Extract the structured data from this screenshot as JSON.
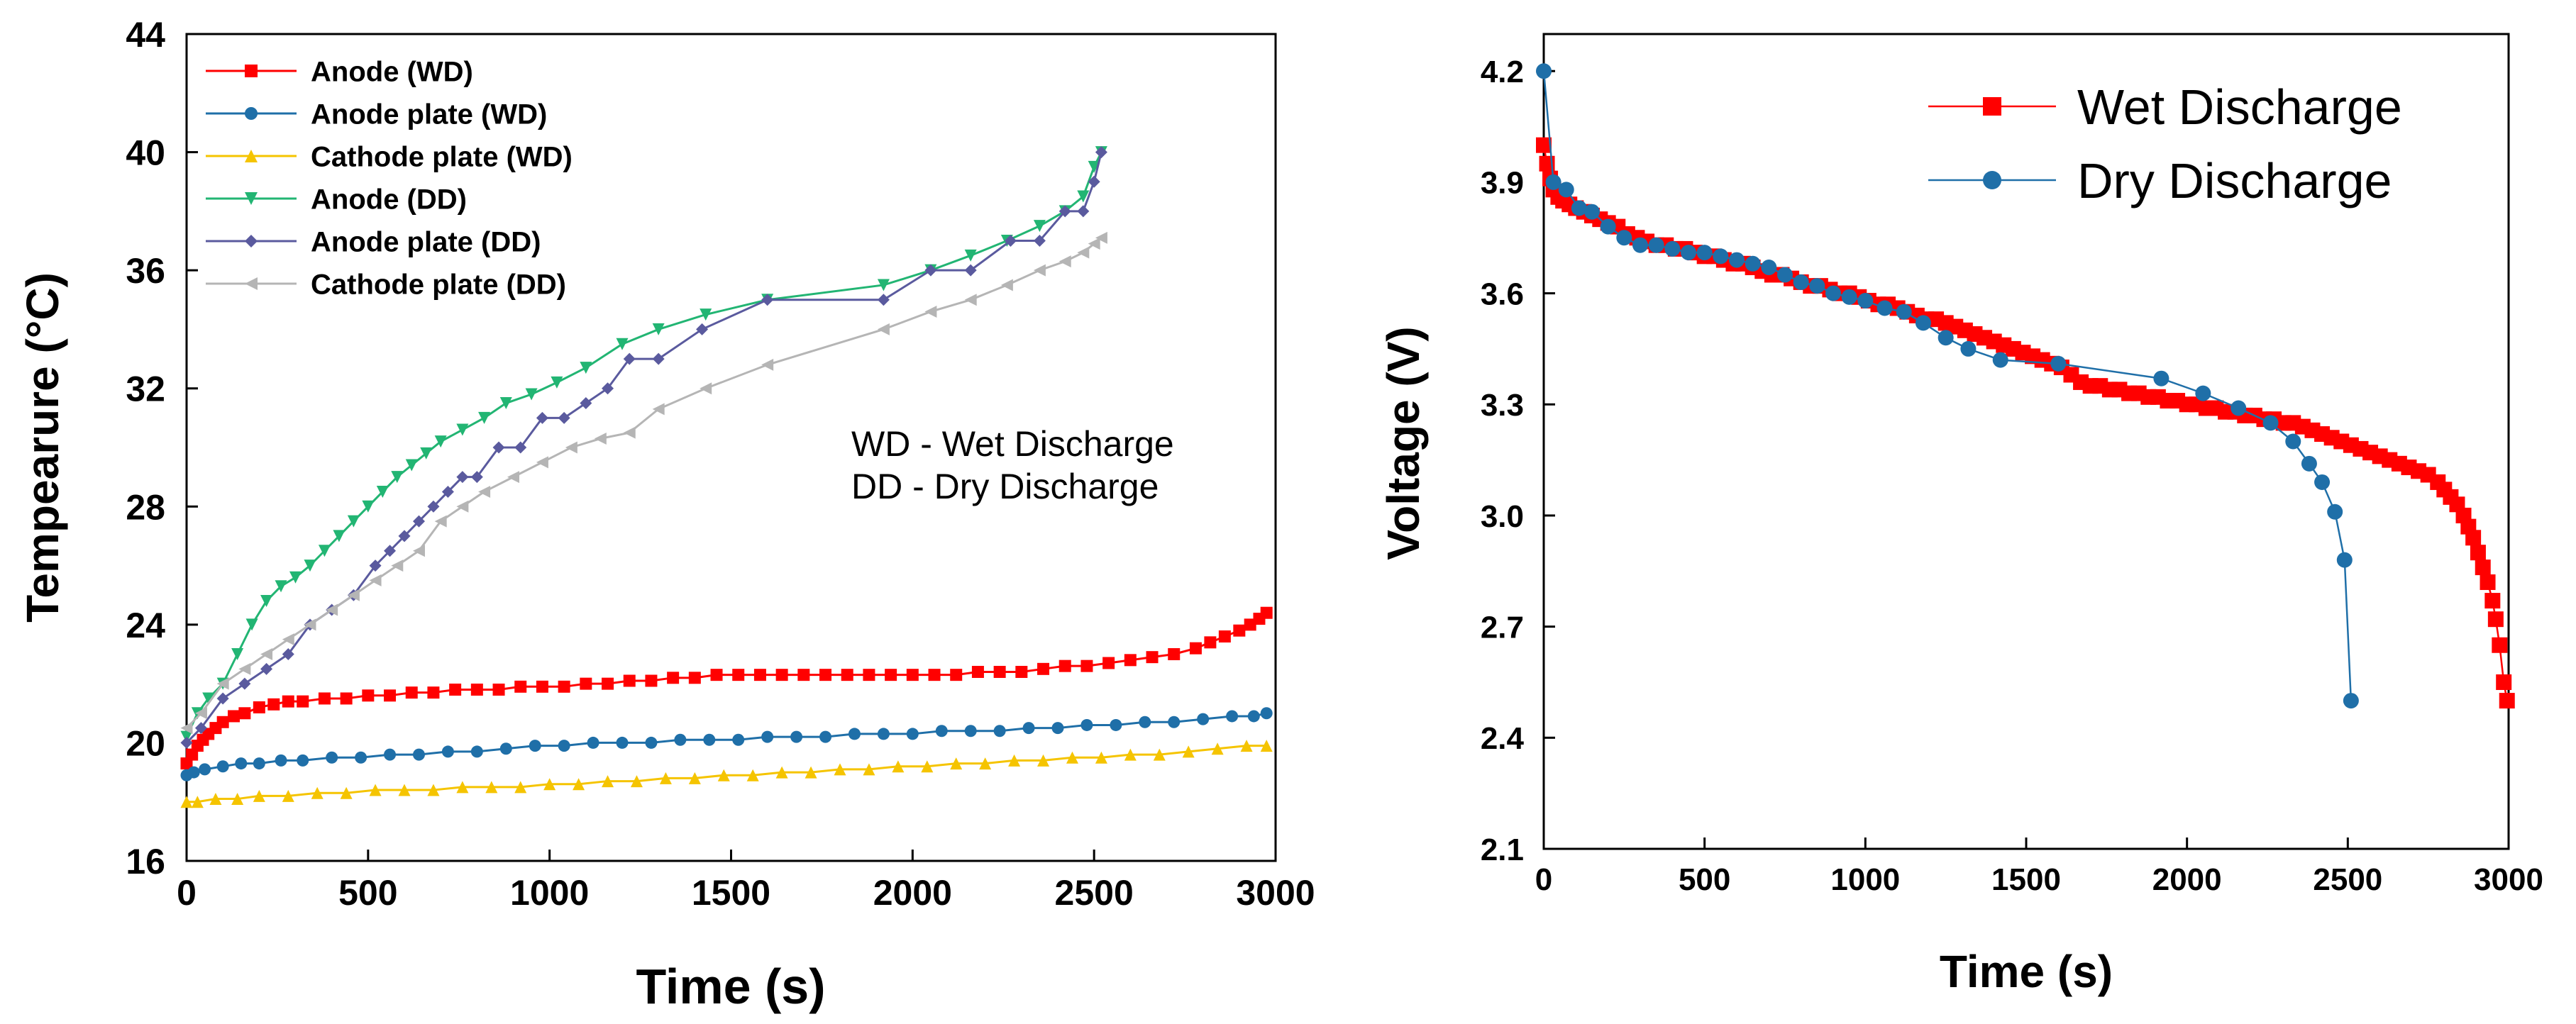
{
  "chart_data": [
    {
      "type": "line",
      "id": "left",
      "xlabel": "Time (s)",
      "ylabel": "Tempearure (°C)",
      "xlim": [
        0,
        3000
      ],
      "ylim": [
        16,
        44
      ],
      "xticks": [
        0,
        500,
        1000,
        1500,
        2000,
        2500,
        3000
      ],
      "yticks": [
        16,
        20,
        24,
        28,
        32,
        36,
        40,
        44
      ],
      "legend_position": "top-left",
      "annotations": [
        "WD - Wet Discharge",
        "DD - Dry Discharge"
      ],
      "series": [
        {
          "name": "Anode (WD)",
          "color": "#ff0000",
          "marker": "square",
          "x": [
            0,
            15,
            30,
            45,
            60,
            80,
            100,
            130,
            160,
            200,
            240,
            280,
            320,
            380,
            440,
            500,
            560,
            620,
            680,
            740,
            800,
            860,
            920,
            980,
            1040,
            1100,
            1160,
            1220,
            1280,
            1340,
            1400,
            1460,
            1520,
            1580,
            1640,
            1700,
            1760,
            1820,
            1880,
            1940,
            2000,
            2060,
            2120,
            2180,
            2240,
            2300,
            2360,
            2420,
            2480,
            2540,
            2600,
            2660,
            2720,
            2780,
            2820,
            2860,
            2900,
            2930,
            2955,
            2975
          ],
          "y": [
            19.3,
            19.6,
            19.9,
            20.1,
            20.3,
            20.5,
            20.7,
            20.9,
            21.0,
            21.2,
            21.3,
            21.4,
            21.4,
            21.5,
            21.5,
            21.6,
            21.6,
            21.7,
            21.7,
            21.8,
            21.8,
            21.8,
            21.9,
            21.9,
            21.9,
            22.0,
            22.0,
            22.1,
            22.1,
            22.2,
            22.2,
            22.3,
            22.3,
            22.3,
            22.3,
            22.3,
            22.3,
            22.3,
            22.3,
            22.3,
            22.3,
            22.3,
            22.3,
            22.4,
            22.4,
            22.4,
            22.5,
            22.6,
            22.6,
            22.7,
            22.8,
            22.9,
            23.0,
            23.2,
            23.4,
            23.6,
            23.8,
            24.0,
            24.2,
            24.4
          ]
        },
        {
          "name": "Anode plate (WD)",
          "color": "#1f6fa8",
          "marker": "circle",
          "x": [
            0,
            20,
            50,
            100,
            150,
            200,
            260,
            320,
            400,
            480,
            560,
            640,
            720,
            800,
            880,
            960,
            1040,
            1120,
            1200,
            1280,
            1360,
            1440,
            1520,
            1600,
            1680,
            1760,
            1840,
            1920,
            2000,
            2080,
            2160,
            2240,
            2320,
            2400,
            2480,
            2560,
            2640,
            2720,
            2800,
            2880,
            2940,
            2975
          ],
          "y": [
            18.9,
            19.0,
            19.1,
            19.2,
            19.3,
            19.3,
            19.4,
            19.4,
            19.5,
            19.5,
            19.6,
            19.6,
            19.7,
            19.7,
            19.8,
            19.9,
            19.9,
            20.0,
            20.0,
            20.0,
            20.1,
            20.1,
            20.1,
            20.2,
            20.2,
            20.2,
            20.3,
            20.3,
            20.3,
            20.4,
            20.4,
            20.4,
            20.5,
            20.5,
            20.6,
            20.6,
            20.7,
            20.7,
            20.8,
            20.9,
            20.9,
            21.0
          ]
        },
        {
          "name": "Cathode plate (WD)",
          "color": "#f5c400",
          "marker": "triangle-up",
          "x": [
            0,
            30,
            80,
            140,
            200,
            280,
            360,
            440,
            520,
            600,
            680,
            760,
            840,
            920,
            1000,
            1080,
            1160,
            1240,
            1320,
            1400,
            1480,
            1560,
            1640,
            1720,
            1800,
            1880,
            1960,
            2040,
            2120,
            2200,
            2280,
            2360,
            2440,
            2520,
            2600,
            2680,
            2760,
            2840,
            2920,
            2975
          ],
          "y": [
            18.0,
            18.0,
            18.1,
            18.1,
            18.2,
            18.2,
            18.3,
            18.3,
            18.4,
            18.4,
            18.4,
            18.5,
            18.5,
            18.5,
            18.6,
            18.6,
            18.7,
            18.7,
            18.8,
            18.8,
            18.9,
            18.9,
            19.0,
            19.0,
            19.1,
            19.1,
            19.2,
            19.2,
            19.3,
            19.3,
            19.4,
            19.4,
            19.5,
            19.5,
            19.6,
            19.6,
            19.7,
            19.8,
            19.9,
            19.9
          ]
        },
        {
          "name": "Anode (DD)",
          "color": "#22b573",
          "marker": "triangle-down",
          "x": [
            0,
            30,
            60,
            100,
            140,
            180,
            220,
            260,
            300,
            340,
            380,
            420,
            460,
            500,
            540,
            580,
            620,
            660,
            700,
            760,
            820,
            880,
            950,
            1020,
            1100,
            1200,
            1300,
            1430,
            1600,
            1920,
            2050,
            2160,
            2260,
            2350,
            2420,
            2470,
            2500,
            2520
          ],
          "y": [
            20.2,
            21.0,
            21.5,
            22.0,
            23.0,
            24.0,
            24.8,
            25.3,
            25.6,
            26.0,
            26.5,
            27.0,
            27.5,
            28.0,
            28.5,
            29.0,
            29.4,
            29.8,
            30.2,
            30.6,
            31.0,
            31.5,
            31.8,
            32.2,
            32.7,
            33.5,
            34.0,
            34.5,
            35.0,
            35.5,
            36.0,
            36.5,
            37.0,
            37.5,
            38.0,
            38.5,
            39.5,
            40.0
          ]
        },
        {
          "name": "Anode plate (DD)",
          "color": "#5a5a9e",
          "marker": "diamond",
          "x": [
            0,
            40,
            100,
            160,
            220,
            280,
            340,
            400,
            460,
            520,
            560,
            600,
            640,
            680,
            720,
            760,
            800,
            860,
            920,
            980,
            1040,
            1100,
            1160,
            1220,
            1300,
            1420,
            1600,
            1920,
            2050,
            2160,
            2270,
            2350,
            2420,
            2470,
            2500,
            2520
          ],
          "y": [
            20.0,
            20.5,
            21.5,
            22.0,
            22.5,
            23.0,
            24.0,
            24.5,
            25.0,
            26.0,
            26.5,
            27.0,
            27.5,
            28.0,
            28.5,
            29.0,
            29.0,
            30.0,
            30.0,
            31.0,
            31.0,
            31.5,
            32.0,
            33.0,
            33.0,
            34.0,
            35.0,
            35.0,
            36.0,
            36.0,
            37.0,
            37.0,
            38.0,
            38.0,
            39.0,
            40.0
          ]
        },
        {
          "name": "Cathode plate (DD)",
          "color": "#b5b5b5",
          "marker": "triangle-left",
          "x": [
            0,
            40,
            100,
            160,
            220,
            280,
            340,
            400,
            460,
            520,
            580,
            640,
            700,
            760,
            820,
            900,
            980,
            1060,
            1140,
            1220,
            1300,
            1430,
            1600,
            1920,
            2050,
            2160,
            2260,
            2350,
            2420,
            2470,
            2500,
            2520
          ],
          "y": [
            20.5,
            21.0,
            22.0,
            22.5,
            23.0,
            23.5,
            24.0,
            24.5,
            25.0,
            25.5,
            26.0,
            26.5,
            27.5,
            28.0,
            28.5,
            29.0,
            29.5,
            30.0,
            30.3,
            30.5,
            31.3,
            32.0,
            32.8,
            34.0,
            34.6,
            35.0,
            35.5,
            36.0,
            36.3,
            36.6,
            36.9,
            37.1
          ]
        }
      ]
    },
    {
      "type": "line",
      "id": "right",
      "xlabel": "Time (s)",
      "ylabel": "Voltage (V)",
      "xlim": [
        0,
        3000
      ],
      "ylim": [
        2.1,
        4.3
      ],
      "xticks": [
        0,
        500,
        1000,
        1500,
        2000,
        2500,
        3000
      ],
      "yticks": [
        2.1,
        2.4,
        2.7,
        3.0,
        3.3,
        3.6,
        3.9,
        4.2
      ],
      "legend_position": "top-right",
      "series": [
        {
          "name": "Wet Discharge",
          "color": "#ff0000",
          "marker": "square",
          "x": [
            0,
            10,
            20,
            30,
            45,
            60,
            80,
            100,
            125,
            150,
            175,
            200,
            230,
            260,
            290,
            320,
            350,
            380,
            410,
            440,
            470,
            500,
            530,
            560,
            590,
            620,
            650,
            680,
            710,
            740,
            770,
            800,
            830,
            860,
            890,
            920,
            950,
            980,
            1010,
            1040,
            1070,
            1100,
            1130,
            1160,
            1190,
            1220,
            1250,
            1280,
            1310,
            1340,
            1370,
            1400,
            1430,
            1460,
            1490,
            1520,
            1550,
            1580,
            1610,
            1640,
            1670,
            1700,
            1730,
            1760,
            1790,
            1820,
            1850,
            1880,
            1910,
            1940,
            1970,
            2000,
            2030,
            2060,
            2090,
            2120,
            2150,
            2180,
            2210,
            2240,
            2270,
            2300,
            2330,
            2360,
            2390,
            2420,
            2450,
            2480,
            2510,
            2540,
            2570,
            2600,
            2630,
            2660,
            2690,
            2720,
            2750,
            2780,
            2800,
            2820,
            2840,
            2860,
            2875,
            2890,
            2905,
            2920,
            2935,
            2950,
            2960,
            2972,
            2985,
            2995
          ],
          "y": [
            4.0,
            3.95,
            3.91,
            3.88,
            3.86,
            3.85,
            3.84,
            3.83,
            3.82,
            3.81,
            3.8,
            3.79,
            3.78,
            3.76,
            3.75,
            3.74,
            3.73,
            3.73,
            3.72,
            3.72,
            3.71,
            3.7,
            3.7,
            3.69,
            3.68,
            3.68,
            3.67,
            3.66,
            3.65,
            3.65,
            3.64,
            3.63,
            3.62,
            3.62,
            3.61,
            3.6,
            3.6,
            3.59,
            3.58,
            3.57,
            3.57,
            3.56,
            3.55,
            3.54,
            3.53,
            3.53,
            3.52,
            3.51,
            3.5,
            3.49,
            3.48,
            3.47,
            3.46,
            3.45,
            3.44,
            3.43,
            3.42,
            3.41,
            3.4,
            3.38,
            3.36,
            3.35,
            3.35,
            3.34,
            3.34,
            3.33,
            3.33,
            3.32,
            3.32,
            3.31,
            3.31,
            3.3,
            3.3,
            3.29,
            3.29,
            3.28,
            3.28,
            3.27,
            3.27,
            3.26,
            3.26,
            3.25,
            3.25,
            3.24,
            3.23,
            3.22,
            3.21,
            3.2,
            3.19,
            3.18,
            3.17,
            3.16,
            3.15,
            3.14,
            3.13,
            3.12,
            3.11,
            3.09,
            3.07,
            3.05,
            3.03,
            3.0,
            2.97,
            2.94,
            2.9,
            2.86,
            2.82,
            2.77,
            2.72,
            2.65,
            2.55,
            2.5
          ]
        },
        {
          "name": "Dry Discharge",
          "color": "#1f6fa8",
          "marker": "circle",
          "x": [
            0,
            30,
            70,
            110,
            150,
            200,
            250,
            300,
            350,
            400,
            450,
            500,
            550,
            600,
            650,
            700,
            750,
            800,
            850,
            900,
            950,
            1000,
            1060,
            1120,
            1180,
            1250,
            1320,
            1420,
            1600,
            1920,
            2050,
            2160,
            2260,
            2330,
            2380,
            2420,
            2460,
            2490,
            2510
          ],
          "y": [
            4.2,
            3.9,
            3.88,
            3.83,
            3.82,
            3.78,
            3.75,
            3.73,
            3.73,
            3.72,
            3.71,
            3.71,
            3.7,
            3.69,
            3.68,
            3.67,
            3.65,
            3.63,
            3.62,
            3.6,
            3.59,
            3.58,
            3.56,
            3.55,
            3.52,
            3.48,
            3.45,
            3.42,
            3.41,
            3.37,
            3.33,
            3.29,
            3.25,
            3.2,
            3.14,
            3.09,
            3.01,
            2.88,
            2.5
          ]
        }
      ]
    }
  ]
}
